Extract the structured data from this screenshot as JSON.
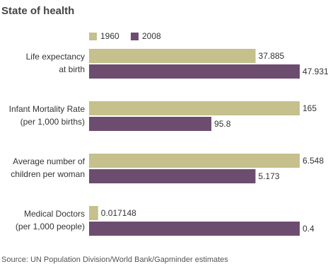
{
  "chart_data": {
    "type": "bar",
    "orientation": "horizontal",
    "title": "State of health",
    "categories": [
      [
        "Life expectancy",
        "at birth"
      ],
      [
        "Infant Mortality Rate",
        "(per 1,000 births)"
      ],
      [
        "Average number of",
        "children per woman"
      ],
      [
        "Medical Doctors",
        "(per 1,000 people)"
      ]
    ],
    "series": [
      {
        "name": "1960",
        "color": "#c5c08c",
        "values": [
          37.885,
          165,
          6.548,
          0.017148
        ]
      },
      {
        "name": "2008",
        "color": "#6d4d6f",
        "values": [
          47.931,
          95.8,
          5.173,
          0.4
        ]
      }
    ],
    "source": "Source: UN Population Division/World Bank/Gapminder estimates"
  }
}
